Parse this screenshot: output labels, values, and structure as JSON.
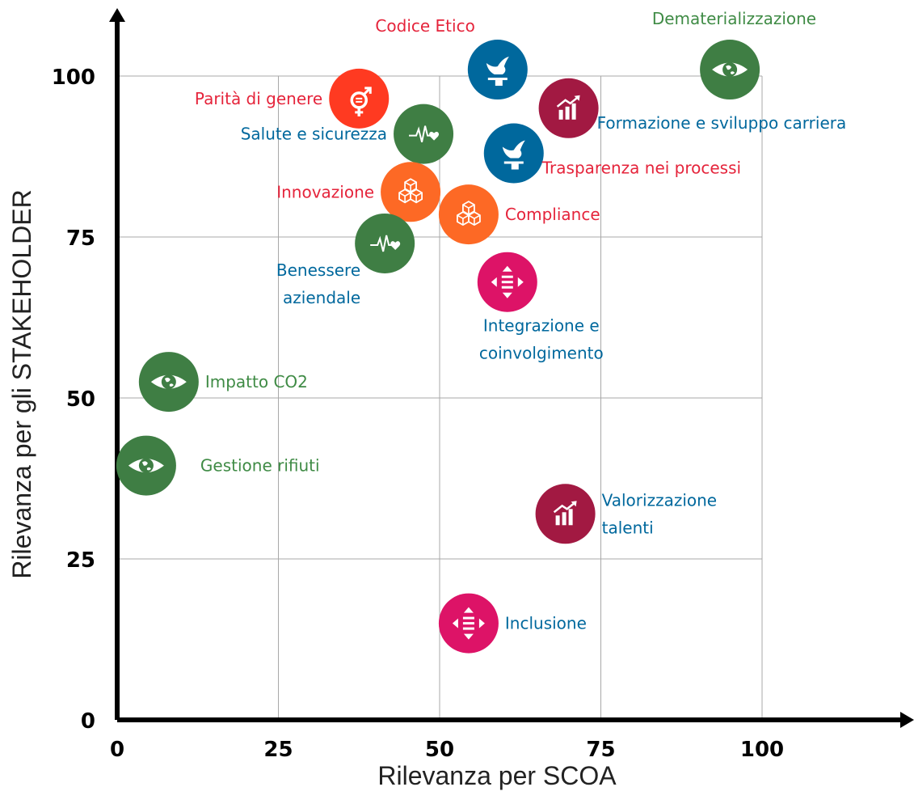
{
  "chart_data": {
    "type": "scatter",
    "title": "",
    "xlabel": "Rilevanza per SCOA",
    "ylabel": "Rilevanza per gli STAKEHOLDER",
    "xlim": [
      0,
      120
    ],
    "ylim": [
      0,
      110
    ],
    "grid": true,
    "grid_extent": [
      0,
      100
    ],
    "xticks": [
      0,
      25,
      50,
      75,
      100
    ],
    "yticks": [
      0,
      25,
      50,
      75,
      100
    ],
    "xtick_labels": [
      "0",
      "25",
      "50",
      "75",
      "100"
    ],
    "ytick_labels": [
      "0",
      "25",
      "50",
      "75",
      "100"
    ],
    "colors": {
      "green": "#3f7e44",
      "blue": "#00689d",
      "red": "#e5243b",
      "orange": "#fd6925",
      "orange_red": "#ff3a21",
      "magenta": "#dd1367",
      "crimson": "#a21942",
      "label_green": "#3f8b45",
      "label_blue": "#00689d",
      "label_red": "#e5243b"
    },
    "points": [
      {
        "label": [
          "Codice Etico"
        ],
        "x": 59,
        "y": 101,
        "color": "blue",
        "icon": "dove-gavel-icon",
        "label_color": "label_red",
        "label_pos": "top-left"
      },
      {
        "label": [
          "Dematerializzazione"
        ],
        "x": 95,
        "y": 101,
        "color": "green",
        "icon": "eye-globe-icon",
        "label_color": "label_green",
        "label_pos": "top-right"
      },
      {
        "label": [
          "Parità di genere"
        ],
        "x": 37.5,
        "y": 96.5,
        "color": "orange_red",
        "icon": "gender-equality-icon",
        "label_color": "label_red",
        "label_pos": "left"
      },
      {
        "label": [
          "Formazione e sviluppo carriera"
        ],
        "x": 70,
        "y": 95,
        "color": "crimson",
        "icon": "growth-chart-icon",
        "label_color": "label_blue",
        "label_pos": "right-low"
      },
      {
        "label": [
          "Salute e sicurezza"
        ],
        "x": 47.5,
        "y": 91,
        "color": "green",
        "icon": "heartbeat-icon",
        "label_color": "label_blue",
        "label_pos": "left"
      },
      {
        "label": [
          "Trasparenza nei processi"
        ],
        "x": 61.5,
        "y": 88,
        "color": "blue",
        "icon": "dove-gavel-icon",
        "label_color": "label_red",
        "label_pos": "right-low"
      },
      {
        "label": [
          "Innovazione"
        ],
        "x": 45.5,
        "y": 82,
        "color": "orange",
        "icon": "cubes-icon",
        "label_color": "label_red",
        "label_pos": "left"
      },
      {
        "label": [
          "Compliance"
        ],
        "x": 54.5,
        "y": 78.5,
        "color": "orange",
        "icon": "cubes-icon",
        "label_color": "label_red",
        "label_pos": "right"
      },
      {
        "label": [
          "Benessere",
          "aziendale"
        ],
        "x": 41.5,
        "y": 74,
        "color": "green",
        "icon": "heartbeat-icon",
        "label_color": "label_blue",
        "label_pos": "below-left"
      },
      {
        "label": [
          "Integrazione e",
          "coinvolgimento"
        ],
        "x": 60.5,
        "y": 68,
        "color": "magenta",
        "icon": "equality-arrows-icon",
        "label_color": "label_blue",
        "label_pos": "below"
      },
      {
        "label": [
          "Impatto CO2"
        ],
        "x": 8,
        "y": 52.5,
        "color": "green",
        "icon": "eye-globe-icon",
        "label_color": "label_green",
        "label_pos": "right"
      },
      {
        "label": [
          "Gestione rifiuti"
        ],
        "x": 4.5,
        "y": 39.5,
        "color": "green",
        "icon": "eye-globe-icon",
        "label_color": "label_green",
        "label_pos": "right-far"
      },
      {
        "label": [
          "Valorizzazione",
          "talenti"
        ],
        "x": 69.5,
        "y": 32,
        "color": "crimson",
        "icon": "growth-chart-icon",
        "label_color": "label_blue",
        "label_pos": "right"
      },
      {
        "label": [
          "Inclusione"
        ],
        "x": 54.5,
        "y": 15,
        "color": "magenta",
        "icon": "equality-arrows-icon",
        "label_color": "label_blue",
        "label_pos": "right"
      }
    ]
  }
}
